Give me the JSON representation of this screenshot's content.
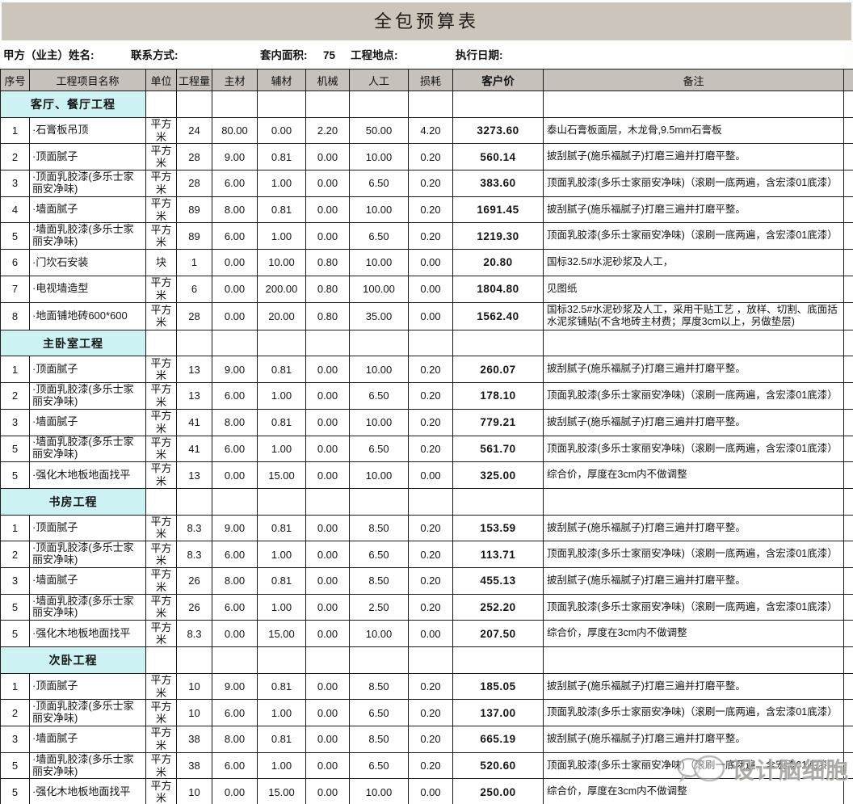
{
  "title": "全包预算表",
  "info": {
    "owner_label": "甲方（业主）姓名:",
    "contact_label": "联系方式:",
    "area_label": "套内面积:",
    "area_value": "75",
    "location_label": "工程地点:",
    "date_label": "执行日期:"
  },
  "columns": [
    "序号",
    "工程项目名称",
    "单位",
    "工程量",
    "主材",
    "辅材",
    "机械",
    "人工",
    "损耗",
    "客户价",
    "备注"
  ],
  "sections": [
    {
      "name": "客厅、餐厅工程",
      "rows": [
        [
          "1",
          "·石膏板吊顶",
          "平方米",
          "24",
          "80.00",
          "0.00",
          "2.20",
          "50.00",
          "4.20",
          "3273.60",
          "泰山石膏板面层，木龙骨,9.5mm石膏板"
        ],
        [
          "2",
          "·顶面腻子",
          "平方米",
          "28",
          "9.00",
          "0.81",
          "0.00",
          "10.00",
          "0.20",
          "560.14",
          "披刮腻子(施乐福腻子)打磨三遍并打磨平整。"
        ],
        [
          "3",
          "·顶面乳胶漆(多乐士家丽安净味)",
          "平方米",
          "28",
          "6.00",
          "1.00",
          "0.00",
          "6.50",
          "0.20",
          "383.60",
          "顶面乳胶漆(多乐士家丽安净味)（滚刷一底两遍，含宏漆01底漆）"
        ],
        [
          "4",
          "·墙面腻子",
          "平方米",
          "89",
          "8.00",
          "0.81",
          "0.00",
          "10.00",
          "0.20",
          "1691.45",
          "披刮腻子(施乐福腻子)打磨三遍并打磨平整。"
        ],
        [
          "5",
          "·墙面乳胶漆(多乐士家丽安净味)",
          "平方米",
          "89",
          "6.00",
          "1.00",
          "0.00",
          "6.50",
          "0.20",
          "1219.30",
          "顶面乳胶漆(多乐士家丽安净味)（滚刷一底两遍，含宏漆01底漆）"
        ],
        [
          "6",
          "·门坎石安装",
          "块",
          "1",
          "0.00",
          "10.00",
          "0.80",
          "10.00",
          "0.00",
          "20.80",
          "国标32.5#水泥砂浆及人工，"
        ],
        [
          "7",
          "·电视墙造型",
          "平方米",
          "6",
          "0.00",
          "200.00",
          "0.80",
          "100.00",
          "0.00",
          "1804.80",
          "见图纸"
        ],
        [
          "8",
          "·地面铺地砖600*600",
          "平方米",
          "28",
          "0.00",
          "20.00",
          "0.80",
          "35.00",
          "0.00",
          "1562.40",
          "国标32.5#水泥砂浆及人工，采用干贴工艺 ，放样、切割、底面括水泥浆铺贴(不含地砖主材费；厚度3cm以上，另做垫层)"
        ]
      ]
    },
    {
      "name": "主卧室工程",
      "rows": [
        [
          "1",
          "·顶面腻子",
          "平方米",
          "13",
          "9.00",
          "0.81",
          "0.00",
          "10.00",
          "0.20",
          "260.07",
          "披刮腻子(施乐福腻子)打磨三遍并打磨平整。"
        ],
        [
          "2",
          "·顶面乳胶漆(多乐士家丽安净味)",
          "平方米",
          "13",
          "6.00",
          "1.00",
          "0.00",
          "6.50",
          "0.20",
          "178.10",
          "顶面乳胶漆(多乐士家丽安净味)（滚刷一底两遍，含宏漆01底漆）"
        ],
        [
          "3",
          "·墙面腻子",
          "平方米",
          "41",
          "8.00",
          "0.81",
          "0.00",
          "10.00",
          "0.20",
          "779.21",
          "披刮腻子(施乐福腻子)打磨三遍并打磨平整。"
        ],
        [
          "5",
          "·墙面乳胶漆(多乐士家丽安净味)",
          "平方米",
          "41",
          "6.00",
          "1.00",
          "0.00",
          "6.50",
          "0.20",
          "561.70",
          "顶面乳胶漆(多乐士家丽安净味)（滚刷一底两遍，含宏漆01底漆）"
        ],
        [
          "5",
          "·强化木地板地面找平",
          "平方米",
          "13",
          "0.00",
          "15.00",
          "0.00",
          "10.00",
          "0.00",
          "325.00",
          "综合价，厚度在3cm内不做调整"
        ]
      ]
    },
    {
      "name": "书房工程",
      "rows": [
        [
          "1",
          "·顶面腻子",
          "平方米",
          "8.3",
          "9.00",
          "0.81",
          "0.00",
          "8.50",
          "0.20",
          "153.59",
          "披刮腻子(施乐福腻子)打磨三遍并打磨平整。"
        ],
        [
          "2",
          "·顶面乳胶漆(多乐士家丽安净味)",
          "平方米",
          "8.3",
          "6.00",
          "1.00",
          "0.00",
          "6.50",
          "0.20",
          "113.71",
          "顶面乳胶漆(多乐士家丽安净味)（滚刷一底两遍，含宏漆01底漆）"
        ],
        [
          "3",
          "·墙面腻子",
          "平方米",
          "26",
          "8.00",
          "0.81",
          "0.00",
          "8.50",
          "0.20",
          "455.13",
          "披刮腻子(施乐福腻子)打磨三遍并打磨平整。"
        ],
        [
          "5",
          "·墙面乳胶漆(多乐士家丽安净味)",
          "平方米",
          "26",
          "6.00",
          "1.00",
          "0.00",
          "2.50",
          "0.20",
          "252.20",
          "顶面乳胶漆(多乐士家丽安净味)（滚刷一底两遍，含宏漆01底漆）"
        ],
        [
          "5",
          "·强化木地板地面找平",
          "平方米",
          "8.3",
          "0.00",
          "15.00",
          "0.00",
          "10.00",
          "0.00",
          "207.50",
          "综合价，厚度在3cm内不做调整"
        ]
      ]
    },
    {
      "name": "次卧工程",
      "rows": [
        [
          "1",
          "·顶面腻子",
          "平方米",
          "10",
          "9.00",
          "0.81",
          "0.00",
          "8.50",
          "0.20",
          "185.05",
          "披刮腻子(施乐福腻子)打磨三遍并打磨平整。"
        ],
        [
          "2",
          "·顶面乳胶漆(多乐士家丽安净味)",
          "平方米",
          "10",
          "6.00",
          "1.00",
          "0.00",
          "6.50",
          "0.20",
          "137.00",
          "顶面乳胶漆(多乐士家丽安净味)（滚刷一底两遍，含宏漆01底漆）"
        ],
        [
          "3",
          "·墙面腻子",
          "平方米",
          "38",
          "8.00",
          "0.81",
          "0.00",
          "8.50",
          "0.20",
          "665.19",
          "披刮腻子(施乐福腻子)打磨三遍并打磨平整。"
        ],
        [
          "5",
          "·墙面乳胶漆(多乐士家丽安净味)",
          "平方米",
          "38",
          "6.00",
          "1.00",
          "0.00",
          "6.50",
          "0.20",
          "520.60",
          "顶面乳胶漆(多乐士家丽安净味)（滚刷一底两遍，含宏漆01底漆）"
        ],
        [
          "5",
          "·强化木地板地面找平",
          "平方米",
          "10",
          "0.00",
          "15.00",
          "0.00",
          "10.00",
          "0.00",
          "250.00",
          "综合价，厚度在3cm内不做调整"
        ]
      ]
    }
  ],
  "watermark": {
    "text": "设计脑细胞"
  },
  "colors": {
    "title_bar_bg": "#cbc5bc",
    "header_bg": "#c6c2bb",
    "section_bg": "#ccf2f3",
    "border": "#1b1b1b"
  }
}
